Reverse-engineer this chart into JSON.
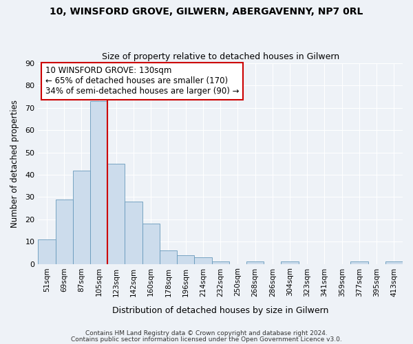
{
  "title": "10, WINSFORD GROVE, GILWERN, ABERGAVENNY, NP7 0RL",
  "subtitle": "Size of property relative to detached houses in Gilwern",
  "xlabel": "Distribution of detached houses by size in Gilwern",
  "ylabel": "Number of detached properties",
  "categories": [
    "51sqm",
    "69sqm",
    "87sqm",
    "105sqm",
    "123sqm",
    "142sqm",
    "160sqm",
    "178sqm",
    "196sqm",
    "214sqm",
    "232sqm",
    "250sqm",
    "268sqm",
    "286sqm",
    "304sqm",
    "323sqm",
    "341sqm",
    "359sqm",
    "377sqm",
    "395sqm",
    "413sqm"
  ],
  "values": [
    11,
    29,
    42,
    73,
    45,
    28,
    18,
    6,
    4,
    3,
    1,
    0,
    1,
    0,
    1,
    0,
    0,
    0,
    1,
    0,
    1
  ],
  "bar_color": "#ccdcec",
  "bar_edge_color": "#6699bb",
  "vline_pos": 3.5,
  "vline_color": "#cc0000",
  "annotation_title": "10 WINSFORD GROVE: 130sqm",
  "annotation_line1": "← 65% of detached houses are smaller (170)",
  "annotation_line2": "34% of semi-detached houses are larger (90) →",
  "ylim": [
    0,
    90
  ],
  "yticks": [
    0,
    10,
    20,
    30,
    40,
    50,
    60,
    70,
    80,
    90
  ],
  "background_color": "#eef2f7",
  "grid_color": "#ffffff",
  "footer1": "Contains HM Land Registry data © Crown copyright and database right 2024.",
  "footer2": "Contains public sector information licensed under the Open Government Licence v3.0."
}
